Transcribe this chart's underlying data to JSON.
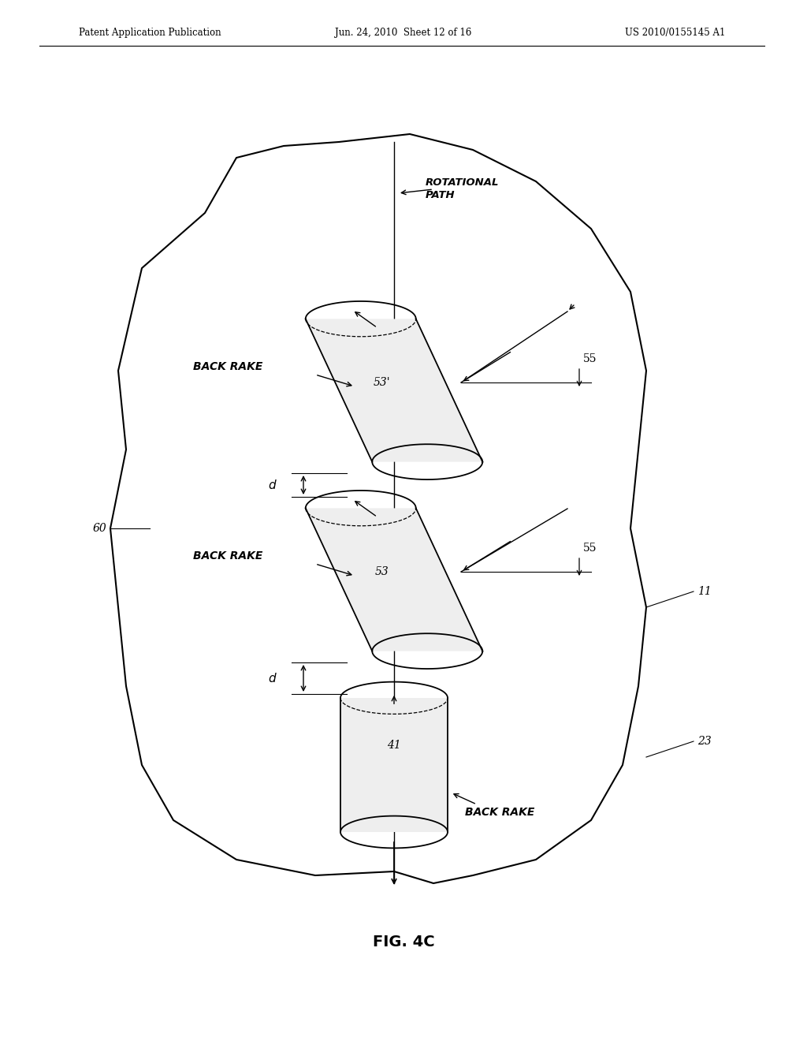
{
  "title": "FIG. 4C",
  "header_left": "Patent Application Publication",
  "header_center": "Jun. 24, 2010  Sheet 12 of 16",
  "header_right": "US 2010/0155145 A1",
  "fig_label": "FIG. 4C",
  "background_color": "#ffffff",
  "line_color": "#000000",
  "labels": {
    "rotational_path": "ROTATIONAL\nPATH",
    "back_rake_top": "BACK RAKE",
    "back_rake_mid": "BACK RAKE",
    "back_rake_bot": "BACK RAKE",
    "cutter_top": "53’",
    "cutter_mid": "53",
    "cutter_bot": "41",
    "label_55_top": "55",
    "label_55_mid": "55",
    "label_d_top": "d",
    "label_d_mid": "d",
    "label_60": "60",
    "label_11": "11",
    "label_23": "23"
  }
}
